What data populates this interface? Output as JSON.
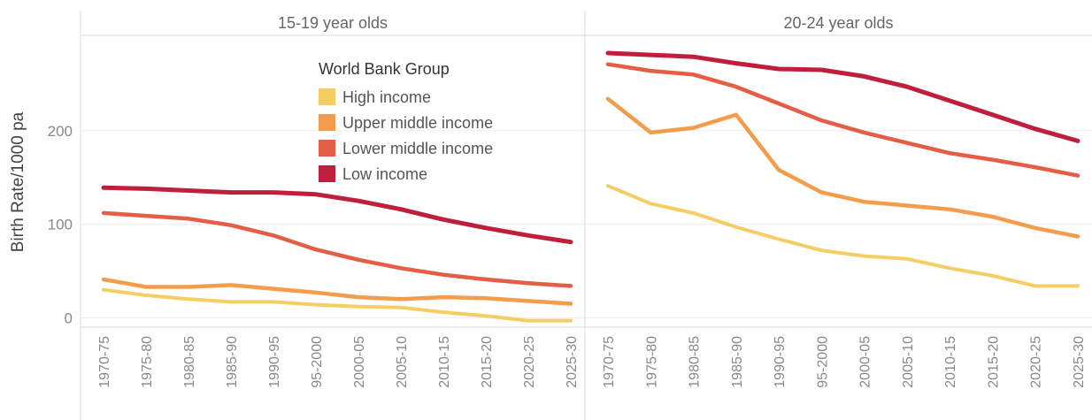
{
  "chart_data": {
    "type": "line",
    "ylabel": "Birth Rate/1000 pa",
    "ylim": [
      -10,
      300
    ],
    "yticks": [
      0,
      100,
      200
    ],
    "categories": [
      "1970-75",
      "1975-80",
      "1980-85",
      "1985-90",
      "1990-95",
      "95-2000",
      "2000-05",
      "2005-10",
      "2010-15",
      "2015-20",
      "2020-25",
      "2025-30"
    ],
    "legend": {
      "title": "World Bank Group",
      "placement": "inside-top, left panel"
    },
    "panels": [
      {
        "title": "15-19 year olds",
        "series": [
          {
            "name": "High income",
            "color": "#f4cd63",
            "values": [
              30,
              24,
              20,
              17,
              17,
              14,
              12,
              11,
              6,
              2,
              -3,
              -3
            ]
          },
          {
            "name": "Upper middle income",
            "color": "#f59c4c",
            "values": [
              41,
              33,
              33,
              35,
              31,
              27,
              22,
              20,
              22,
              21,
              18,
              15
            ]
          },
          {
            "name": "Lower middle income",
            "color": "#e45d45",
            "values": [
              112,
              109,
              106,
              99,
              88,
              73,
              62,
              53,
              46,
              41,
              37,
              34
            ]
          },
          {
            "name": "Low income",
            "color": "#bf1f3d",
            "values": [
              139,
              138,
              136,
              134,
              134,
              132,
              125,
              116,
              105,
              96,
              88,
              81
            ]
          }
        ]
      },
      {
        "title": "20-24 year olds",
        "series": [
          {
            "name": "High income",
            "color": "#f4cd63",
            "values": [
              141,
              122,
              112,
              97,
              84,
              72,
              66,
              63,
              53,
              45,
              34,
              34
            ]
          },
          {
            "name": "Upper middle income",
            "color": "#f59c4c",
            "values": [
              234,
              198,
              203,
              217,
              158,
              134,
              124,
              120,
              116,
              108,
              96,
              87
            ]
          },
          {
            "name": "Lower middle income",
            "color": "#e45d45",
            "values": [
              271,
              264,
              260,
              247,
              229,
              211,
              198,
              187,
              176,
              169,
              161,
              152
            ]
          },
          {
            "name": "Low income",
            "color": "#bf1f3d",
            "values": [
              283,
              281,
              279,
              272,
              266,
              265,
              258,
              247,
              232,
              217,
              202,
              189
            ]
          }
        ]
      }
    ],
    "grid": "horizontal"
  }
}
